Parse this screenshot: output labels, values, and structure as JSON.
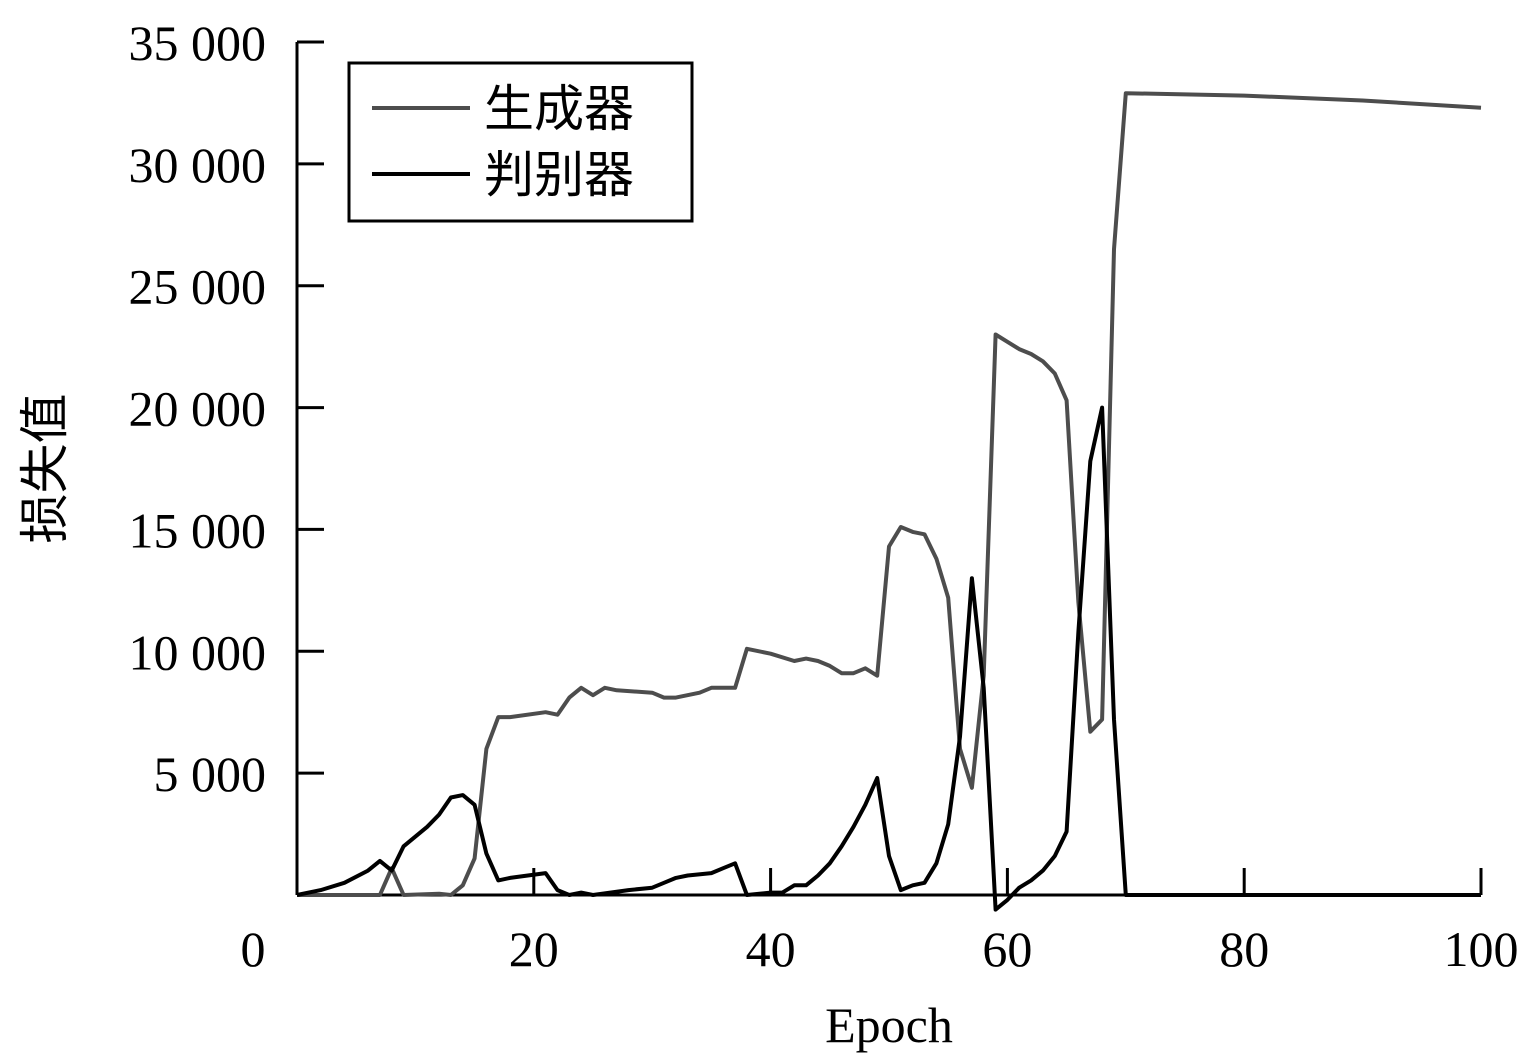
{
  "chart_data": {
    "type": "line",
    "xlabel": "Epoch",
    "ylabel": "损失值",
    "xlim": [
      0,
      100
    ],
    "ylim": [
      0,
      35000
    ],
    "xticks": [
      0,
      20,
      40,
      60,
      80,
      100
    ],
    "yticks": [
      5000,
      10000,
      15000,
      20000,
      25000,
      30000,
      35000
    ],
    "xtick_labels": [
      "0",
      "20",
      "40",
      "60",
      "80",
      "100"
    ],
    "ytick_labels": [
      "5 000",
      "10 000",
      "15 000",
      "20 000",
      "25 000",
      "30 000",
      "35 000"
    ],
    "grid": false,
    "legend_position": "top-left",
    "series": [
      {
        "name": "生成器",
        "color": "#4d4d4d",
        "points": [
          [
            0,
            0
          ],
          [
            7,
            0
          ],
          [
            8,
            1100
          ],
          [
            9,
            0
          ],
          [
            12,
            50
          ],
          [
            13,
            0
          ],
          [
            14,
            400
          ],
          [
            15,
            1500
          ],
          [
            16,
            6000
          ],
          [
            17,
            7300
          ],
          [
            18,
            7300
          ],
          [
            21,
            7500
          ],
          [
            22,
            7400
          ],
          [
            23,
            8100
          ],
          [
            24,
            8500
          ],
          [
            25,
            8200
          ],
          [
            26,
            8500
          ],
          [
            27,
            8400
          ],
          [
            30,
            8300
          ],
          [
            31,
            8100
          ],
          [
            32,
            8100
          ],
          [
            34,
            8300
          ],
          [
            35,
            8500
          ],
          [
            37,
            8500
          ],
          [
            38,
            10100
          ],
          [
            40,
            9900
          ],
          [
            42,
            9600
          ],
          [
            43,
            9700
          ],
          [
            44,
            9600
          ],
          [
            45,
            9400
          ],
          [
            46,
            9100
          ],
          [
            47,
            9100
          ],
          [
            48,
            9300
          ],
          [
            49,
            9000
          ],
          [
            50,
            14300
          ],
          [
            51,
            15100
          ],
          [
            52,
            14900
          ],
          [
            53,
            14800
          ],
          [
            54,
            13800
          ],
          [
            55,
            12200
          ],
          [
            56,
            6000
          ],
          [
            57,
            4400
          ],
          [
            58,
            9000
          ],
          [
            59,
            23000
          ],
          [
            60,
            22700
          ],
          [
            61,
            22400
          ],
          [
            62,
            22200
          ],
          [
            63,
            21900
          ],
          [
            64,
            21400
          ],
          [
            65,
            20300
          ],
          [
            66,
            12000
          ],
          [
            67,
            6700
          ],
          [
            68,
            7200
          ],
          [
            69,
            26500
          ],
          [
            70,
            32900
          ],
          [
            75,
            32850
          ],
          [
            80,
            32800
          ],
          [
            90,
            32600
          ],
          [
            100,
            32300
          ]
        ]
      },
      {
        "name": "判别器",
        "color": "#000000",
        "points": [
          [
            0,
            0
          ],
          [
            2,
            200
          ],
          [
            4,
            500
          ],
          [
            6,
            1000
          ],
          [
            7,
            1400
          ],
          [
            8,
            1000
          ],
          [
            9,
            2000
          ],
          [
            11,
            2800
          ],
          [
            12,
            3300
          ],
          [
            13,
            4000
          ],
          [
            14,
            4100
          ],
          [
            15,
            3700
          ],
          [
            16,
            1700
          ],
          [
            17,
            600
          ],
          [
            18,
            700
          ],
          [
            21,
            900
          ],
          [
            22,
            200
          ],
          [
            23,
            0
          ],
          [
            24,
            100
          ],
          [
            25,
            0
          ],
          [
            28,
            200
          ],
          [
            30,
            300
          ],
          [
            31,
            500
          ],
          [
            32,
            700
          ],
          [
            33,
            800
          ],
          [
            35,
            900
          ],
          [
            36,
            1100
          ],
          [
            37,
            1300
          ],
          [
            38,
            0
          ],
          [
            40,
            100
          ],
          [
            41,
            100
          ],
          [
            42,
            400
          ],
          [
            43,
            400
          ],
          [
            44,
            800
          ],
          [
            45,
            1300
          ],
          [
            46,
            2000
          ],
          [
            47,
            2800
          ],
          [
            48,
            3700
          ],
          [
            49,
            4800
          ],
          [
            50,
            1600
          ],
          [
            51,
            200
          ],
          [
            52,
            400
          ],
          [
            53,
            500
          ],
          [
            54,
            1300
          ],
          [
            55,
            2900
          ],
          [
            56,
            6500
          ],
          [
            57,
            13000
          ],
          [
            58,
            8500
          ],
          [
            59,
            -600
          ],
          [
            60,
            -200
          ],
          [
            61,
            300
          ],
          [
            62,
            600
          ],
          [
            63,
            1000
          ],
          [
            64,
            1600
          ],
          [
            65,
            2600
          ],
          [
            66,
            10800
          ],
          [
            67,
            17800
          ],
          [
            68,
            20000
          ],
          [
            69,
            7200
          ],
          [
            70,
            0
          ],
          [
            80,
            0
          ],
          [
            100,
            0
          ]
        ]
      }
    ]
  }
}
